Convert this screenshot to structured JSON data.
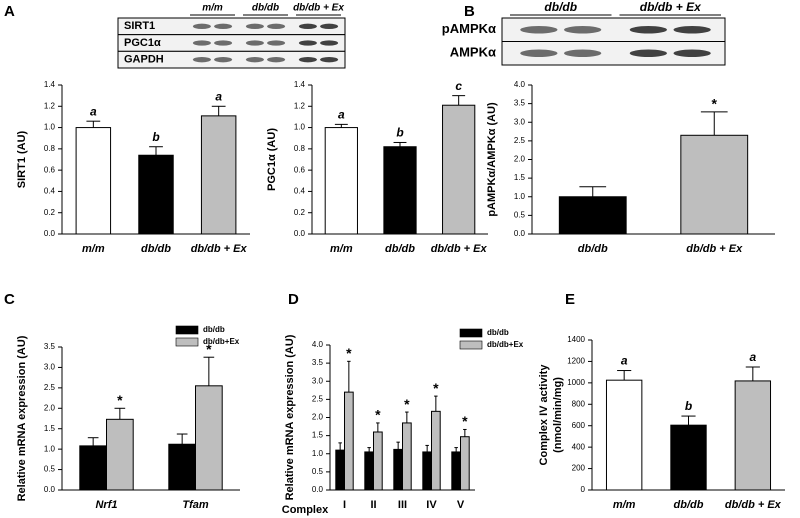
{
  "chart_data": [
    {
      "type": "bar",
      "panel": "A",
      "blot": {
        "groups": [
          "m/m",
          "db/db",
          "db/db + Ex"
        ],
        "rows": [
          "SIRT1",
          "PGC1α",
          "GAPDH"
        ]
      },
      "ylabel": "SIRT1 (AU)",
      "categories": [
        "m/m",
        "db/db",
        "db/db + Ex"
      ],
      "values": [
        1,
        0.74,
        1.11
      ],
      "errors": [
        0.06,
        0.08,
        0.09
      ],
      "colors": [
        "#ffffff",
        "#000000",
        "#bebebe"
      ],
      "annotations": [
        "a",
        "b",
        "a"
      ],
      "ylim": [
        0,
        1.4
      ],
      "yticks": [
        {
          "value": 0,
          "label": "0.0"
        },
        0.2,
        0.4,
        0.6,
        0.8,
        {
          "value": 1,
          "label": "1.0"
        },
        1.2,
        1.4
      ]
    },
    {
      "type": "bar",
      "ylabel": "PGC1α (AU)",
      "categories": [
        "m/m",
        "db/db",
        "db/db + Ex"
      ],
      "values": [
        1,
        0.82,
        1.21
      ],
      "errors": [
        0.03,
        0.04,
        0.09
      ],
      "colors": [
        "#ffffff",
        "#000000",
        "#bebebe"
      ],
      "annotations": [
        "a",
        "b",
        "c"
      ],
      "ylim": [
        0,
        1.4
      ],
      "yticks": [
        {
          "value": 0,
          "label": "0.0"
        },
        0.2,
        0.4,
        0.6,
        0.8,
        {
          "value": 1,
          "label": "1.0"
        },
        1.2,
        1.4
      ]
    },
    {
      "type": "bar",
      "panel": "B",
      "blot": {
        "groups": [
          "db/db",
          "db/db + Ex"
        ],
        "rows": [
          "pAMPKα",
          "AMPKα"
        ]
      },
      "ylabel": "pAMPKα/AMPKα (AU)",
      "categories": [
        "db/db",
        "db/db + Ex"
      ],
      "values": [
        1,
        2.65
      ],
      "errors": [
        0.27,
        0.63
      ],
      "colors": [
        "#000000",
        "#bebebe"
      ],
      "annotations": [
        null,
        "*"
      ],
      "ylim": [
        0,
        4
      ],
      "yticks": [
        {
          "value": 0,
          "label": "0.0"
        },
        0.5,
        {
          "value": 1,
          "label": "1.0"
        },
        1.5,
        {
          "value": 2,
          "label": "2.0"
        },
        2.5,
        {
          "value": 3,
          "label": "3.0"
        },
        3.5,
        {
          "value": 4,
          "label": "4.0"
        }
      ]
    },
    {
      "type": "bar",
      "panel": "C",
      "ylabel": "Relative mRNA expression (AU)",
      "categories": [
        "Nrf1",
        "Tfam"
      ],
      "series": [
        {
          "name": "db/db",
          "color": "#000000",
          "values": [
            1.08,
            1.12
          ],
          "errors": [
            0.2,
            0.25
          ],
          "annotations": [
            null,
            null
          ]
        },
        {
          "name": "db/db+Ex",
          "color": "#bebebe",
          "values": [
            1.73,
            2.55
          ],
          "errors": [
            0.27,
            0.7
          ],
          "annotations": [
            "*",
            "*"
          ]
        }
      ],
      "ylim": [
        0,
        3.5
      ],
      "yticks": [
        {
          "value": 0,
          "label": "0.0"
        },
        0.5,
        {
          "value": 1,
          "label": "1.0"
        },
        1.5,
        {
          "value": 2,
          "label": "2.0"
        },
        2.5,
        {
          "value": 3,
          "label": "3.0"
        },
        3.5
      ]
    },
    {
      "type": "bar",
      "panel": "D",
      "ylabel": "Relative mRNA expression (AU)",
      "xlabel": "Complex",
      "categories": [
        "I",
        "II",
        "III",
        "IV",
        "V"
      ],
      "series": [
        {
          "name": "db/db",
          "color": "#000000",
          "values": [
            1.1,
            1.05,
            1.12,
            1.05,
            1.05
          ],
          "errors": [
            0.2,
            0.12,
            0.2,
            0.18,
            0.12
          ],
          "annotations": [
            null,
            null,
            null,
            null,
            null
          ]
        },
        {
          "name": "db/db+Ex",
          "color": "#bebebe",
          "values": [
            2.7,
            1.6,
            1.85,
            2.17,
            1.47
          ],
          "errors": [
            0.85,
            0.25,
            0.3,
            0.42,
            0.2
          ],
          "annotations": [
            "*",
            "*",
            "*",
            "*",
            "*"
          ]
        }
      ],
      "ylim": [
        0,
        4
      ],
      "yticks": [
        {
          "value": 0,
          "label": "0.0"
        },
        0.5,
        {
          "value": 1,
          "label": "1.0"
        },
        1.5,
        {
          "value": 2,
          "label": "2.0"
        },
        2.5,
        {
          "value": 3,
          "label": "3.0"
        },
        3.5,
        {
          "value": 4,
          "label": "4.0"
        }
      ]
    },
    {
      "type": "bar",
      "panel": "E",
      "ylabel": [
        "Complex IV activity",
        "(nmol/min/mg)"
      ],
      "categories": [
        "m/m",
        "db/db",
        "db/db + Ex"
      ],
      "values": [
        1025,
        605,
        1018
      ],
      "errors": [
        90,
        85,
        130
      ],
      "colors": [
        "#ffffff",
        "#000000",
        "#bebebe"
      ],
      "annotations": [
        "a",
        "b",
        "a"
      ],
      "ylim": [
        0,
        1400
      ],
      "yticks": [
        0,
        200,
        400,
        600,
        800,
        1000,
        1200,
        1400
      ]
    }
  ]
}
